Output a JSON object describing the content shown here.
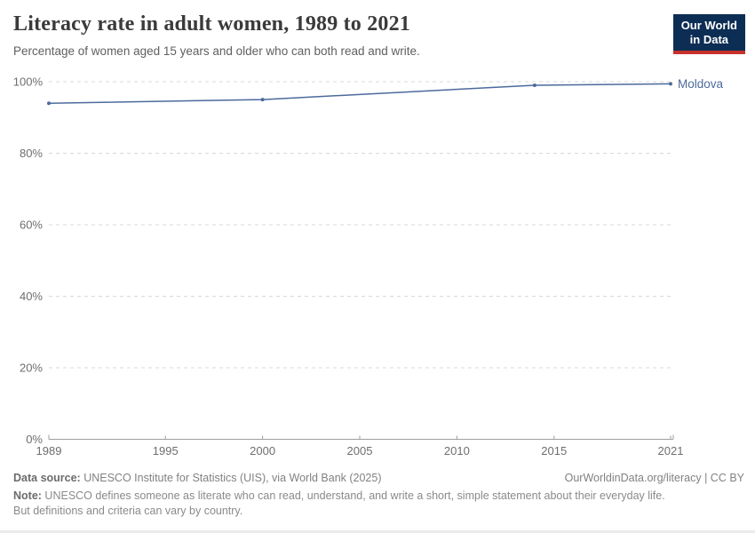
{
  "header": {
    "title": "Literacy rate in adult women, 1989 to 2021",
    "subtitle": "Percentage of women aged 15 years and older who can both read and write.",
    "logo_line1": "Our World",
    "logo_line2": "in Data"
  },
  "chart_data": {
    "type": "line",
    "title": "Literacy rate in adult women, 1989 to 2021",
    "xlabel": "",
    "ylabel": "",
    "xlim": [
      1989,
      2021
    ],
    "ylim": [
      0,
      100
    ],
    "x_ticks": [
      1989,
      1995,
      2000,
      2005,
      2010,
      2015,
      2021
    ],
    "y_ticks": [
      0,
      20,
      40,
      60,
      80,
      100
    ],
    "y_tick_suffix": "%",
    "grid": "horizontal-dashed",
    "legend_position": "end-of-line-label",
    "series": [
      {
        "name": "Moldova",
        "color": "#4C6A9C",
        "points": [
          {
            "x": 1989,
            "y": 94.0
          },
          {
            "x": 2000,
            "y": 95.0
          },
          {
            "x": 2014,
            "y": 99.0
          },
          {
            "x": 2021,
            "y": 99.4
          }
        ]
      }
    ]
  },
  "footer": {
    "datasource_label": "Data source:",
    "datasource_text": " UNESCO Institute for Statistics (UIS), via World Bank (2025)",
    "rights": "OurWorldinData.org/literacy | CC BY",
    "note_label": "Note:",
    "note_text": " UNESCO defines someone as literate who can read, understand, and write a short, simple statement about their everyday life. But definitions and criteria can vary by country."
  },
  "colors": {
    "line": "#4C6A9C",
    "grid": "#d8d8d8",
    "axis": "#9e9e9e",
    "tick_text": "#6e6e6e",
    "logo_navy": "#0d2e54",
    "logo_red": "#c7302b"
  }
}
